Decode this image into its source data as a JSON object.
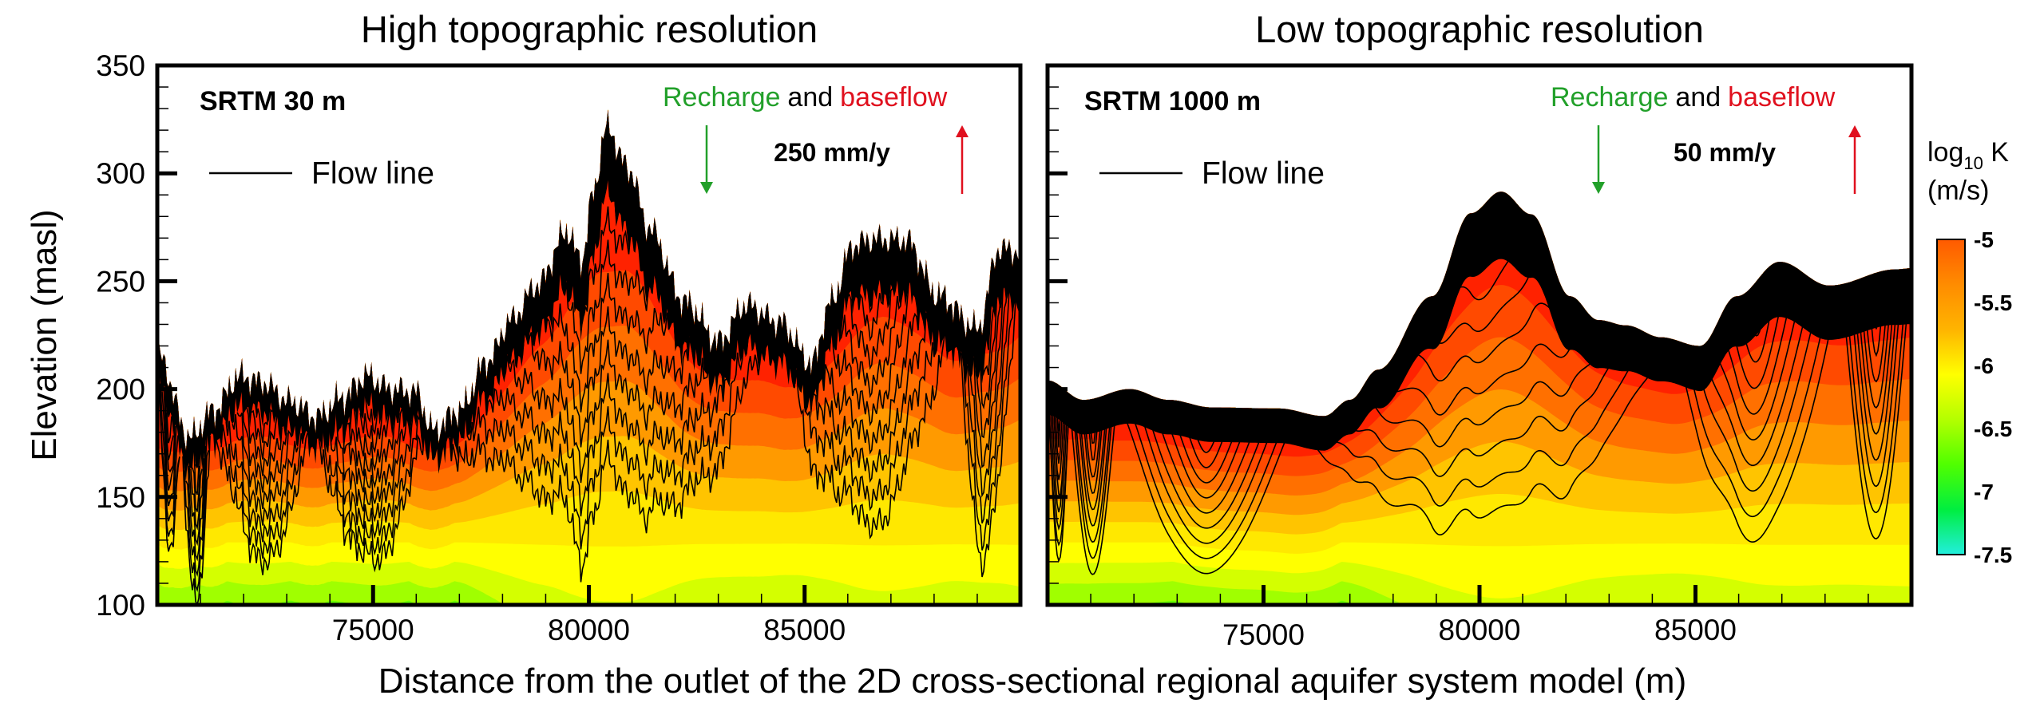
{
  "figure": {
    "x_axis_title": "Distance from the outlet of the 2D cross-sectional regional aquifer system model (m)",
    "y_axis_title": "Elevation (masl)"
  },
  "chart_data": [
    {
      "type": "heatmap",
      "panel": "left",
      "title": "High topographic resolution",
      "dem_label": "SRTM 30 m",
      "legend": {
        "line_label": "Flow line"
      },
      "annotation": {
        "recharge": "Recharge",
        "and": "and",
        "baseflow": "baseflow",
        "rate": "250 mm/y"
      },
      "xlabel": "Distance from the outlet of the 2D cross-sectional regional aquifer system model (m)",
      "ylabel": "Elevation (masl)",
      "xlim": [
        70000,
        90000
      ],
      "ylim": [
        100,
        350
      ],
      "xticks": [
        75000,
        80000,
        85000
      ],
      "xtick_labels": [
        "75000",
        "80000",
        "85000"
      ],
      "yticks": [
        100,
        150,
        200,
        250,
        300,
        350
      ],
      "ytick_labels": [
        "100",
        "150",
        "200",
        "250",
        "300",
        "350"
      ],
      "topography": {
        "x": [
          70000,
          70765,
          71300,
          71913,
          72423,
          73100,
          73699,
          74300,
          74847,
          75400,
          75995,
          76378,
          77000,
          77653,
          78200,
          78801,
          79503,
          79821,
          80100,
          80395,
          80969,
          81352,
          82245,
          83010,
          83648,
          84413,
          85179,
          85600,
          86135,
          86582,
          87347,
          88112,
          89005,
          89515,
          90000
        ],
        "elevation": [
          216,
          177.5,
          190,
          206,
          203,
          194,
          187,
          196,
          206,
          200,
          198.5,
          181,
          190,
          213,
          232,
          248,
          273,
          259,
          290,
          321,
          301,
          275.5,
          240,
          222,
          239,
          231,
          212,
          240,
          266.5,
          269.5,
          269,
          243,
          228,
          265,
          263.5
        ]
      },
      "hydraulic_conductivity_note": "log10 K (m/s) filled contour bands"
    },
    {
      "type": "heatmap",
      "panel": "right",
      "title": "Low topographic resolution",
      "dem_label": "SRTM 1000 m",
      "legend": {
        "line_label": "Flow line"
      },
      "annotation": {
        "recharge": "Recharge",
        "and": "and",
        "baseflow": "baseflow",
        "rate": "50 mm/y"
      },
      "xlabel": "Distance from the outlet of the 2D cross-sectional regional aquifer system model (m)",
      "ylabel": "Elevation (masl)",
      "xlim": [
        70000,
        90000
      ],
      "ylim": [
        100,
        350
      ],
      "xticks": [
        75000,
        80000,
        85000
      ],
      "xtick_labels": [
        "75000",
        "80000",
        "85000"
      ],
      "yticks": [
        100,
        150,
        200,
        250,
        300,
        350
      ],
      "topography": {
        "x": [
          70000,
          70830,
          71900,
          72800,
          73800,
          75350,
          76400,
          77000,
          77650,
          78900,
          79800,
          80500,
          81200,
          82100,
          82750,
          83400,
          84200,
          85100,
          85950,
          86950,
          88100,
          89650,
          90000
        ],
        "elevation": [
          204,
          195,
          200,
          195,
          191.5,
          191,
          187.5,
          195,
          209,
          243,
          281.5,
          291.5,
          281,
          243,
          232,
          229.5,
          224,
          220,
          243,
          259,
          248,
          255.5,
          256
        ]
      }
    }
  ],
  "colorbar": {
    "title_main": "log",
    "title_sub": "10",
    "title_suffix": " K",
    "units": "(m/s)",
    "range": [
      -7.5,
      -5
    ],
    "tick_labels": [
      "-5",
      "-5.5",
      "-6",
      "-6.5",
      "-7",
      "-7.5"
    ],
    "ticks": [
      -5,
      -5.5,
      -6,
      -6.5,
      -7,
      -7.5
    ],
    "colors": [
      "#ff5a00",
      "#ff8c00",
      "#ffb400",
      "#ffff00",
      "#b4ff00",
      "#50ff00",
      "#00ee40",
      "#22eedd"
    ]
  },
  "colors": {
    "recharge": "#22a02a",
    "baseflow": "#e0101e",
    "surface": "#000000",
    "bands": [
      "#ff2200",
      "#ff4a00",
      "#ff7000",
      "#ff9a00",
      "#ffc400",
      "#ffe800",
      "#ffff00",
      "#d4ff00",
      "#a0ff00",
      "#66ff00",
      "#30f000"
    ]
  }
}
